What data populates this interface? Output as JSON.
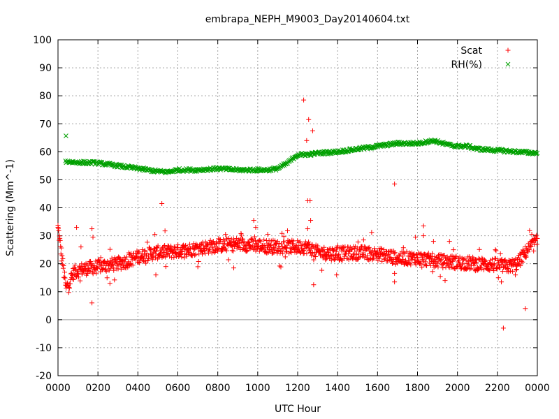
{
  "chart_data": {
    "type": "scatter",
    "title": "embrapa_NEPH_M9003_Day20140604.txt",
    "xlabel": "UTC Hour",
    "ylabel": "Scattering (Mm^-1)",
    "xlim": [
      0,
      24
    ],
    "ylim": [
      -20,
      100
    ],
    "x_ticks": [
      {
        "value": 0,
        "label": "0000"
      },
      {
        "value": 2,
        "label": "0200"
      },
      {
        "value": 4,
        "label": "0400"
      },
      {
        "value": 6,
        "label": "0600"
      },
      {
        "value": 8,
        "label": "0800"
      },
      {
        "value": 10,
        "label": "1000"
      },
      {
        "value": 12,
        "label": "1200"
      },
      {
        "value": 14,
        "label": "1400"
      },
      {
        "value": 16,
        "label": "1600"
      },
      {
        "value": 18,
        "label": "1800"
      },
      {
        "value": 20,
        "label": "2000"
      },
      {
        "value": 22,
        "label": "2200"
      },
      {
        "value": 24,
        "label": "0000"
      }
    ],
    "y_ticks": [
      {
        "value": 100,
        "label": "100"
      },
      {
        "value": 90,
        "label": "90"
      },
      {
        "value": 80,
        "label": "80"
      },
      {
        "value": 70,
        "label": "70"
      },
      {
        "value": 60,
        "label": "60"
      },
      {
        "value": 50,
        "label": "50"
      },
      {
        "value": 40,
        "label": "40"
      },
      {
        "value": 30,
        "label": "30"
      },
      {
        "value": 20,
        "label": "20"
      },
      {
        "value": 10,
        "label": "10"
      },
      {
        "value": 0,
        "label": "0"
      },
      {
        "value": -10,
        "label": "-10"
      },
      {
        "value": -20,
        "label": "-20"
      }
    ],
    "grid": true,
    "zero_line": true,
    "legend_position": "top-right",
    "series": [
      {
        "name": "Scat",
        "marker": "plus",
        "color": "#ff0000",
        "curve": [
          [
            0.0,
            33
          ],
          [
            0.4,
            11
          ],
          [
            0.8,
            17
          ],
          [
            1.2,
            18
          ],
          [
            1.6,
            18.5
          ],
          [
            2.0,
            19
          ],
          [
            2.5,
            19.5
          ],
          [
            3.0,
            20
          ],
          [
            3.5,
            21
          ],
          [
            4.0,
            22.5
          ],
          [
            4.5,
            23.5
          ],
          [
            5.0,
            24
          ],
          [
            6.0,
            24.5
          ],
          [
            7.0,
            25.5
          ],
          [
            8.0,
            26.5
          ],
          [
            9.0,
            27
          ],
          [
            10.0,
            26.5
          ],
          [
            11.0,
            26
          ],
          [
            12.0,
            26
          ],
          [
            12.5,
            26
          ],
          [
            13.0,
            24
          ],
          [
            14.0,
            23.5
          ],
          [
            15.0,
            24
          ],
          [
            16.0,
            23.5
          ],
          [
            17.0,
            22
          ],
          [
            18.0,
            22
          ],
          [
            19.0,
            21
          ],
          [
            20.0,
            20.5
          ],
          [
            21.0,
            20
          ],
          [
            22.0,
            19.5
          ],
          [
            22.5,
            19
          ],
          [
            23.0,
            20
          ],
          [
            23.5,
            25
          ],
          [
            24.0,
            28
          ]
        ],
        "outliers": [
          [
            0.0,
            33.0
          ],
          [
            0.93,
            33.0
          ],
          [
            1.15,
            26.0
          ],
          [
            1.7,
            32.5
          ],
          [
            1.75,
            29.5
          ],
          [
            1.7,
            6.0
          ],
          [
            2.6,
            13.0
          ],
          [
            4.85,
            30.5
          ],
          [
            4.9,
            16.0
          ],
          [
            5.2,
            41.5
          ],
          [
            5.4,
            19.0
          ],
          [
            8.8,
            18.5
          ],
          [
            9.8,
            35.5
          ],
          [
            9.9,
            33.0
          ],
          [
            10.5,
            30.5
          ],
          [
            12.3,
            78.5
          ],
          [
            12.55,
            71.5
          ],
          [
            12.45,
            64.0
          ],
          [
            12.75,
            67.5
          ],
          [
            12.5,
            42.5
          ],
          [
            12.62,
            42.5
          ],
          [
            12.65,
            35.5
          ],
          [
            12.5,
            32.5
          ],
          [
            12.8,
            12.5
          ],
          [
            13.95,
            16.0
          ],
          [
            15.3,
            28.5
          ],
          [
            16.85,
            48.5
          ],
          [
            16.85,
            13.5
          ],
          [
            17.9,
            29.5
          ],
          [
            18.3,
            33.5
          ],
          [
            18.3,
            30.0
          ],
          [
            18.8,
            28.0
          ],
          [
            19.6,
            28.0
          ],
          [
            19.8,
            25.0
          ],
          [
            20.9,
            17.5
          ],
          [
            21.9,
            25.0
          ],
          [
            22.05,
            15.0
          ],
          [
            22.2,
            13.5
          ],
          [
            22.3,
            -3.0
          ],
          [
            22.9,
            16.0
          ],
          [
            23.4,
            4.0
          ]
        ]
      },
      {
        "name": "RH(%)",
        "marker": "cross",
        "color": "#00a000",
        "curve": [
          [
            0.0,
            57.5
          ],
          [
            0.4,
            56.5
          ],
          [
            1.0,
            56.2
          ],
          [
            2.0,
            56.0
          ],
          [
            3.0,
            55
          ],
          [
            4.0,
            54
          ],
          [
            4.5,
            53.5
          ],
          [
            5.0,
            53
          ],
          [
            5.5,
            52.8
          ],
          [
            6.0,
            53.5
          ],
          [
            7.0,
            53.5
          ],
          [
            8.0,
            54
          ],
          [
            9.0,
            53.5
          ],
          [
            10.0,
            53.5
          ],
          [
            10.5,
            53.5
          ],
          [
            11.0,
            54
          ],
          [
            11.5,
            56
          ],
          [
            12.0,
            59
          ],
          [
            12.5,
            59
          ],
          [
            13.0,
            59.5
          ],
          [
            14.0,
            60
          ],
          [
            15.0,
            61
          ],
          [
            16.0,
            62
          ],
          [
            17.0,
            63
          ],
          [
            18.0,
            63
          ],
          [
            18.8,
            64
          ],
          [
            19.5,
            62.5
          ],
          [
            20.0,
            62
          ],
          [
            20.5,
            62
          ],
          [
            21.0,
            61
          ],
          [
            22.0,
            60.5
          ],
          [
            23.0,
            60
          ],
          [
            24.0,
            59.5
          ]
        ],
        "outliers": [
          [
            0.4,
            65.7
          ]
        ]
      }
    ]
  }
}
